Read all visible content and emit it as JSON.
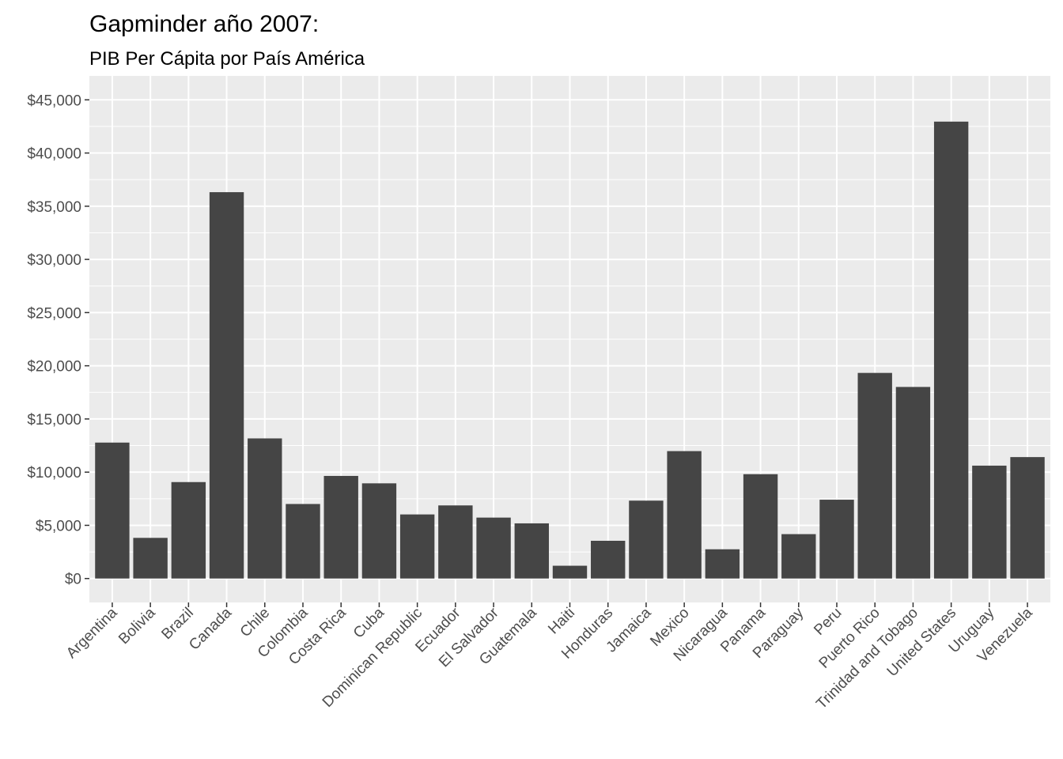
{
  "chart_data": {
    "type": "bar",
    "title": "Gapminder año 2007:",
    "subtitle": "PIB Per Cápita por País América",
    "xlabel": "",
    "ylabel": "",
    "categories": [
      "Argentina",
      "Bolivia",
      "Brazil",
      "Canada",
      "Chile",
      "Colombia",
      "Costa Rica",
      "Cuba",
      "Dominican Republic",
      "Ecuador",
      "El Salvador",
      "Guatemala",
      "Haiti",
      "Honduras",
      "Jamaica",
      "Mexico",
      "Nicaragua",
      "Panama",
      "Paraguay",
      "Peru",
      "Puerto Rico",
      "Trinidad and Tobago",
      "United States",
      "Uruguay",
      "Venezuela"
    ],
    "values": [
      12779,
      3822,
      9066,
      36319,
      13172,
      7007,
      9645,
      8948,
      6025,
      6873,
      5728,
      5186,
      1202,
      3548,
      7321,
      11978,
      2749,
      9809,
      4173,
      7409,
      19329,
      18009,
      42952,
      10611,
      11416
    ],
    "ylim": [
      -2250,
      47250
    ],
    "yticks": [
      0,
      5000,
      10000,
      15000,
      20000,
      25000,
      30000,
      35000,
      40000,
      45000
    ],
    "ytick_labels": [
      "$0",
      "$5,000",
      "$10,000",
      "$15,000",
      "$20,000",
      "$25,000",
      "$30,000",
      "$35,000",
      "$40,000",
      "$45,000"
    ],
    "grid": true,
    "colors": {
      "bar": "#454545",
      "panel": "#ebebeb",
      "grid": "#ffffff",
      "tick_text": "#4d4d4d",
      "tick_mark": "#333333"
    }
  }
}
